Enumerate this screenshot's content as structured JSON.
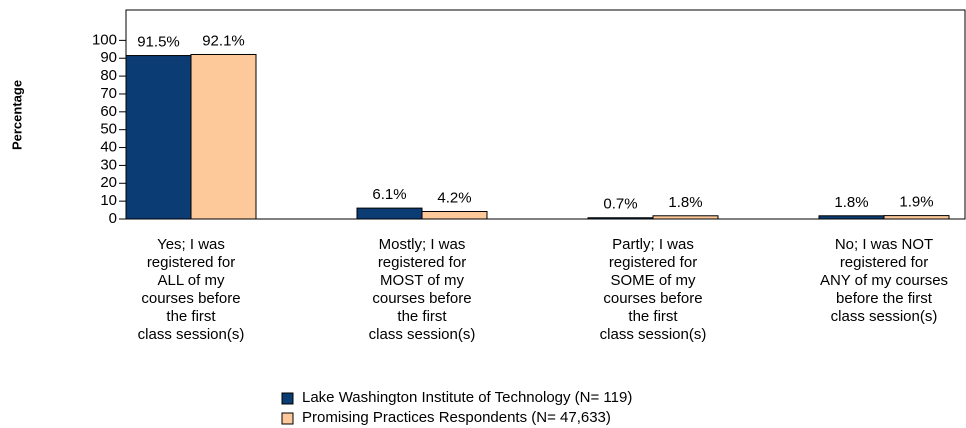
{
  "chart_data": {
    "type": "bar",
    "y_label": "Percentage",
    "categories": [
      "Yes; I was\nregistered for\nALL of my\ncourses before\nthe first\nclass session(s)",
      "Mostly; I was\nregistered for\nMOST of my\ncourses before\nthe first\nclass session(s)",
      "Partly; I was\nregistered for\nSOME of my\ncourses before\nthe first\nclass session(s)",
      "No; I was NOT\nregistered for\nANY of my courses\nbefore the first\nclass session(s)"
    ],
    "series": [
      {
        "name": "Lake Washington Institute of Technology (N= 119)",
        "color": "#0b3c73",
        "values": [
          91.5,
          6.1,
          0.7,
          1.8
        ],
        "value_labels": [
          "91.5%",
          "6.1%",
          "0.7%",
          "1.8%"
        ]
      },
      {
        "name": "Promising Practices Respondents (N= 47,633)",
        "color": "#fdc99b",
        "values": [
          92.1,
          4.2,
          1.8,
          1.9
        ],
        "value_labels": [
          "92.1%",
          "4.2%",
          "1.8%",
          "1.9%"
        ]
      }
    ],
    "ylim": [
      0,
      117
    ],
    "yticks": [
      0,
      10,
      20,
      30,
      40,
      50,
      60,
      70,
      80,
      90,
      100
    ],
    "grid": false
  }
}
